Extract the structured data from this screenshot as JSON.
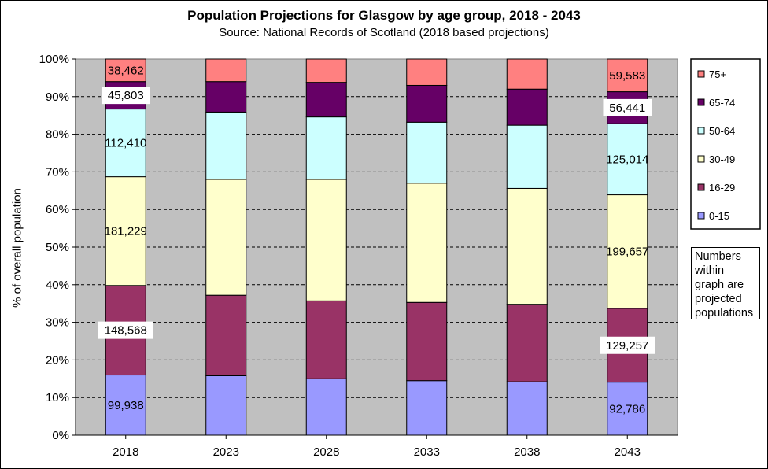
{
  "chart_data": {
    "type": "bar",
    "stacked": true,
    "title": "Population Projections for Glasgow by age group, 2018 - 2043",
    "subtitle": "Source: National Records of Scotland (2018 based projections)",
    "ylabel": "% of overall population",
    "ylim": [
      0,
      100
    ],
    "yticks": [
      "0%",
      "10%",
      "20%",
      "30%",
      "40%",
      "50%",
      "60%",
      "70%",
      "80%",
      "90%",
      "100%"
    ],
    "grid": true,
    "legend_position": "right",
    "categories": [
      "2018",
      "2023",
      "2028",
      "2033",
      "2038",
      "2043"
    ],
    "series": [
      {
        "name": "0-15",
        "color": "#9999ff",
        "values": [
          16,
          15.8,
          15,
          14.5,
          14.2,
          14.1
        ]
      },
      {
        "name": "16-29",
        "color": "#993366",
        "values": [
          23.8,
          21.4,
          20.7,
          20.8,
          20.6,
          19.6
        ]
      },
      {
        "name": "30-49",
        "color": "#ffffcc",
        "values": [
          28.9,
          30.8,
          32.3,
          31.7,
          30.8,
          30.2
        ]
      },
      {
        "name": "50-64",
        "color": "#ccffff",
        "values": [
          18,
          17.9,
          16.6,
          16.2,
          16.8,
          18.9
        ]
      },
      {
        "name": "65-74",
        "color": "#660066",
        "values": [
          7.3,
          8.1,
          9.2,
          9.8,
          9.6,
          8.5
        ]
      },
      {
        "name": "75+",
        "color": "#ff8080",
        "values": [
          6,
          6,
          6.2,
          7,
          8,
          8.7
        ]
      }
    ],
    "data_labels": [
      {
        "category": "2018",
        "series": "0-15",
        "text": "99,938",
        "boxed": false
      },
      {
        "category": "2018",
        "series": "16-29",
        "text": "148,568",
        "boxed": true
      },
      {
        "category": "2018",
        "series": "30-49",
        "text": "181,229",
        "boxed": false
      },
      {
        "category": "2018",
        "series": "50-64",
        "text": "112,410",
        "boxed": false
      },
      {
        "category": "2018",
        "series": "65-74",
        "text": "45,803",
        "boxed": true
      },
      {
        "category": "2018",
        "series": "75+",
        "text": "38,462",
        "boxed": false
      },
      {
        "category": "2043",
        "series": "0-15",
        "text": "92,786",
        "boxed": false
      },
      {
        "category": "2043",
        "series": "16-29",
        "text": "129,257",
        "boxed": true
      },
      {
        "category": "2043",
        "series": "30-49",
        "text": "199,657",
        "boxed": false
      },
      {
        "category": "2043",
        "series": "50-64",
        "text": "125,014",
        "boxed": false
      },
      {
        "category": "2043",
        "series": "65-74",
        "text": "56,441",
        "boxed": true
      },
      {
        "category": "2043",
        "series": "75+",
        "text": "59,583",
        "boxed": false
      }
    ],
    "legend_order": [
      "75+",
      "65-74",
      "50-64",
      "30-49",
      "16-29",
      "0-15"
    ]
  },
  "note": {
    "lines": [
      "Numbers",
      "within",
      "graph are",
      "projected",
      "populations"
    ]
  }
}
